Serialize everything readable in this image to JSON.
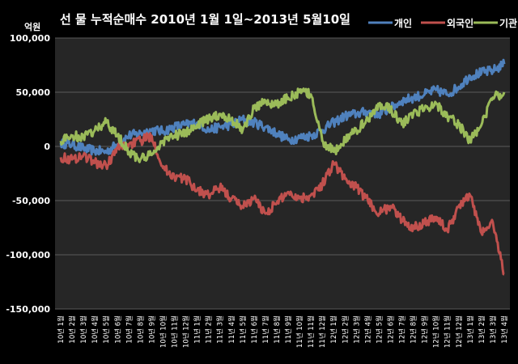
{
  "chart_data": {
    "type": "line",
    "title": "선 물 누적순매수 2010년 1월 1일~2013년 5월10일",
    "ylabel": "억원",
    "xlabel": "",
    "ylim": [
      -150000,
      100000
    ],
    "yticks": [
      100000,
      50000,
      0,
      -50000,
      -100000,
      -150000
    ],
    "ytick_labels": [
      "100,000",
      "50,000",
      "0",
      "-50,000",
      "-100,000",
      "-150,000"
    ],
    "grid": true,
    "legend_position": "top-right",
    "categories": [
      "10년 1월",
      "10년 2월",
      "10년 3월",
      "10년 4월",
      "10년 5월",
      "10년 6월",
      "10년 7월",
      "10년 8월",
      "10년 9월",
      "10년 10월",
      "10년 11월",
      "10년 12월",
      "11년 1월",
      "11년 2월",
      "11년 3월",
      "11년 4월",
      "11년 5월",
      "11년 6월",
      "11년 7월",
      "11년 8월",
      "11년 9월",
      "11년 10월",
      "11년 11월",
      "11년 12월",
      "12년 1월",
      "12년 2월",
      "12년 3월",
      "12년 4월",
      "12년 5월",
      "12년 6월",
      "12년 7월",
      "12년 8월",
      "12년 9월",
      "12년 10월",
      "12년 11월",
      "12년 12월",
      "13년 1월",
      "13년 2월",
      "13년 3월",
      "13년 4월"
    ],
    "series": [
      {
        "name": "개인",
        "color": "#4f81bd",
        "values": [
          3000,
          2000,
          -2000,
          -4000,
          -5000,
          2000,
          10000,
          12000,
          15000,
          14000,
          18000,
          20000,
          22000,
          15000,
          18000,
          20000,
          25000,
          22000,
          18000,
          12000,
          6000,
          8000,
          10000,
          15000,
          22000,
          28000,
          30000,
          32000,
          30000,
          35000,
          42000,
          45000,
          48000,
          52000,
          48000,
          55000,
          65000,
          68000,
          70000,
          76000
        ]
      },
      {
        "name": "외국인",
        "color": "#c0504d",
        "values": [
          -10000,
          -12000,
          -8000,
          -15000,
          -18000,
          -2000,
          2000,
          5000,
          10000,
          -20000,
          -28000,
          -30000,
          -40000,
          -45000,
          -38000,
          -48000,
          -55000,
          -48000,
          -62000,
          -52000,
          -42000,
          -48000,
          -45000,
          -35000,
          -15000,
          -30000,
          -38000,
          -50000,
          -62000,
          -55000,
          -68000,
          -75000,
          -70000,
          -65000,
          -78000,
          -55000,
          -45000,
          -80000,
          -70000,
          -118000
        ]
      },
      {
        "name": "기관",
        "color": "#9bbb59",
        "values": [
          5000,
          10000,
          8000,
          15000,
          22000,
          10000,
          -5000,
          -12000,
          -8000,
          5000,
          10000,
          12000,
          20000,
          25000,
          30000,
          25000,
          15000,
          35000,
          42000,
          38000,
          45000,
          50000,
          48000,
          5000,
          -5000,
          5000,
          15000,
          25000,
          38000,
          35000,
          20000,
          30000,
          35000,
          40000,
          28000,
          20000,
          5000,
          20000,
          45000,
          50000
        ]
      }
    ]
  }
}
